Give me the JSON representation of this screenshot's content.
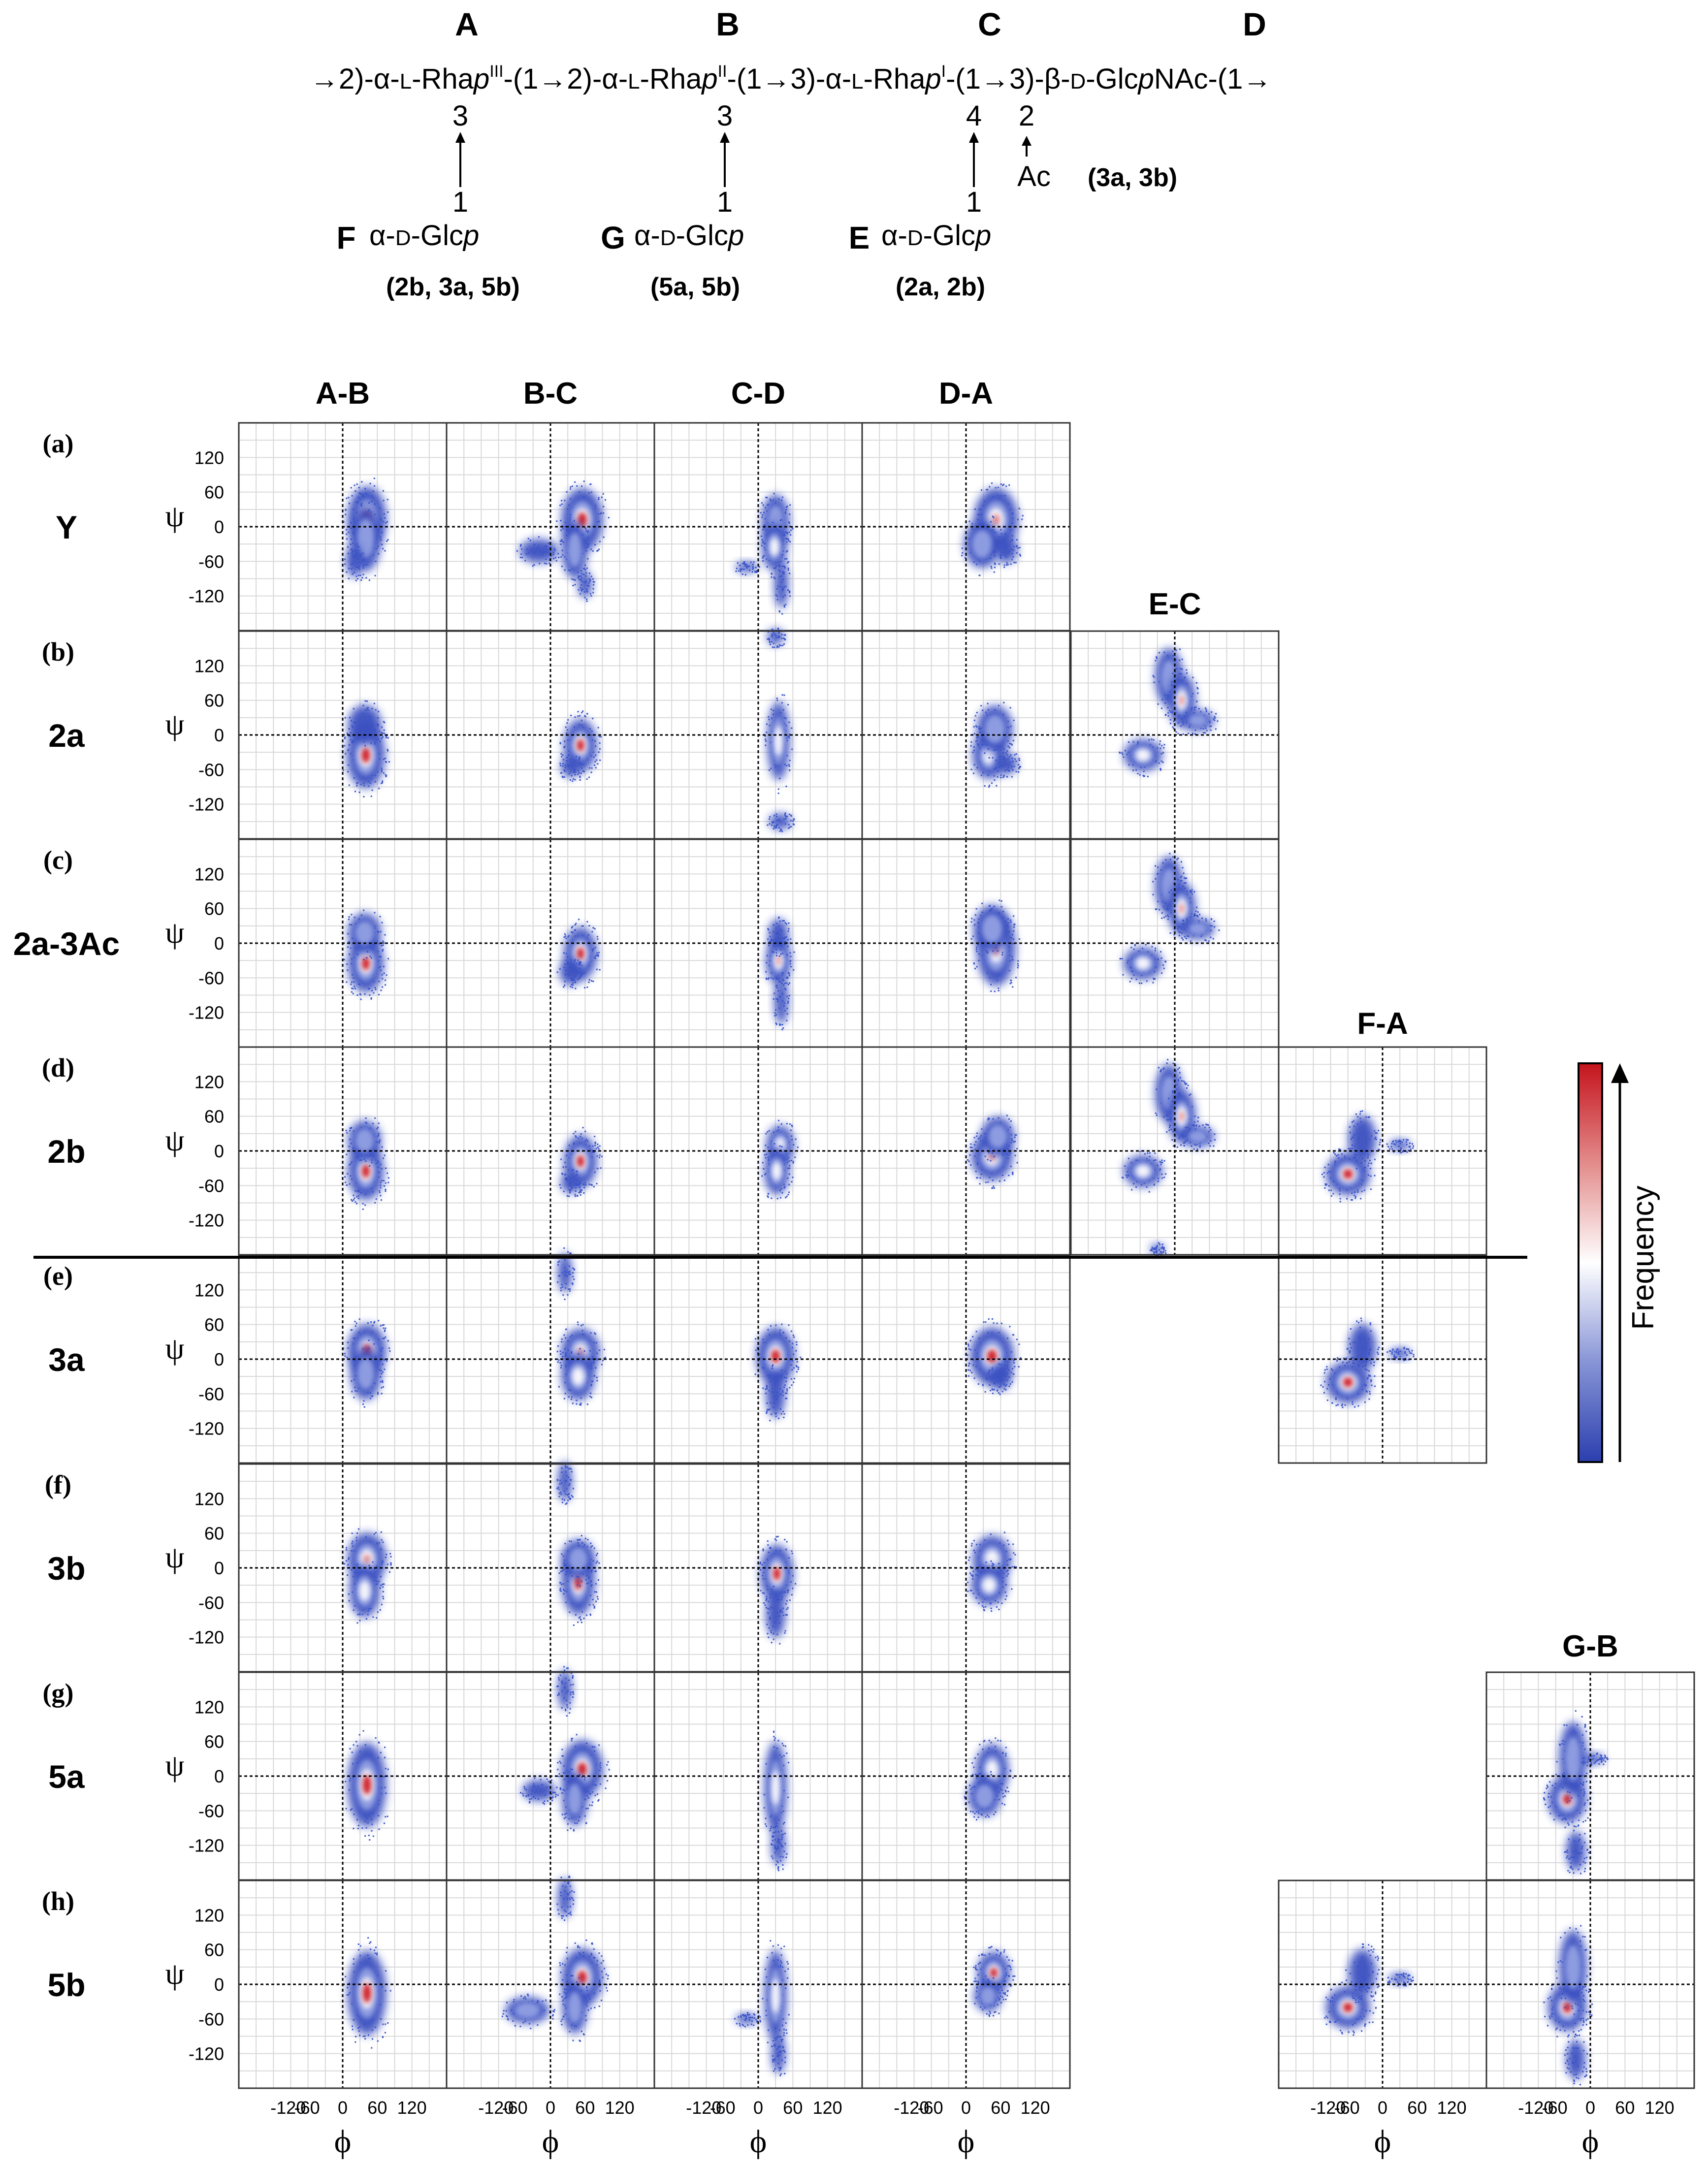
{
  "structure": {
    "residue_letters": [
      "A",
      "B",
      "C",
      "D"
    ],
    "chain": {
      "p1": "→2)-α-",
      "p2": "L",
      "p3": "-Rha",
      "p4": "p",
      "p5": "III",
      "p6": "-(1→2)-α-",
      "p7": "L",
      "p8": "-Rha",
      "p9": "p",
      "p10": "II",
      "p11": "-(1→3)-α-",
      "p12": "L",
      "p13": "-Rha",
      "p14": "p",
      "p15": "I",
      "p16": "-(1→3)-β-",
      "p17": "D",
      "p18": "-Glc",
      "p19": "p",
      "p20": "NAc-(1→"
    },
    "branches": [
      {
        "position": "3",
        "linkage": "1",
        "letter": "F",
        "sugar_a": "α-",
        "sugar_b": "D",
        "sugar_c": "-Glc",
        "sugar_d": "p",
        "note": "(2b, 3a, 5b)"
      },
      {
        "position": "3",
        "linkage": "1",
        "letter": "G",
        "sugar_a": "α-",
        "sugar_b": "D",
        "sugar_c": "-Glc",
        "sugar_d": "p",
        "note": "(5a, 5b)"
      },
      {
        "position": "4",
        "linkage": "1",
        "letter": "E",
        "sugar_a": "α-",
        "sugar_b": "D",
        "sugar_c": "-Glc",
        "sugar_d": "p",
        "note": "(2a, 2b)"
      }
    ],
    "acetyl": {
      "position": "2",
      "label": "Ac",
      "note": "(3a, 3b)"
    }
  },
  "chart_data": {
    "type": "heatmap",
    "description_of_marks": "Ramachandran-type phi/psi frequency density maps",
    "columns": [
      "A-B",
      "B-C",
      "C-D",
      "D-A",
      "E-C",
      "F-A",
      "G-B"
    ],
    "xlabel": "ϕ",
    "ylabel": "ψ",
    "xlim": [
      -180,
      180
    ],
    "ylim": [
      -180,
      180
    ],
    "x_ticks": [
      "-120",
      "-60",
      "0",
      "60",
      "120"
    ],
    "y_ticks": [
      "120",
      "60",
      "0",
      "-60",
      "-120"
    ],
    "grid": true,
    "colorbar": {
      "label": "Frequency",
      "low_color": "#2b3fae",
      "mid_color": "#ffffff",
      "high_color": "#c4141c"
    },
    "rows": [
      {
        "tag": "(a)",
        "name": "Y",
        "panels": {
          "A-B": [
            [
              42,
              15,
              14,
              24,
              0.9
            ],
            [
              40,
              -20,
              11,
              25,
              0.4
            ],
            [
              20,
              -60,
              6,
              12,
              0.1
            ]
          ],
          "B-C": [
            [
              55,
              12,
              15,
              24,
              1.0
            ],
            [
              42,
              -40,
              9,
              22,
              0.4
            ],
            [
              -20,
              -42,
              14,
              9,
              0.2
            ],
            [
              60,
              -100,
              5,
              10,
              0.1
            ]
          ],
          "C-D": [
            [
              30,
              10,
              10,
              20,
              0.45
            ],
            [
              28,
              -35,
              9,
              18,
              0.55
            ],
            [
              40,
              -100,
              5,
              18,
              0.1
            ],
            [
              -20,
              -70,
              8,
              4,
              0.05
            ]
          ],
          "D-A": [
            [
              52,
              12,
              16,
              24,
              0.6
            ],
            [
              28,
              -30,
              13,
              18,
              0.4
            ],
            [
              70,
              -40,
              8,
              10,
              0.15
            ]
          ]
        }
      },
      {
        "tag": "(b)",
        "name": "2a",
        "panels": {
          "A-B": [
            [
              40,
              -35,
              14,
              25,
              1.0
            ],
            [
              38,
              18,
              12,
              15,
              0.25
            ]
          ],
          "B-C": [
            [
              52,
              -18,
              12,
              20,
              1.0
            ],
            [
              35,
              -55,
              7,
              8,
              0.2
            ]
          ],
          "C-D": [
            [
              35,
              -10,
              8,
              30,
              0.5
            ],
            [
              38,
              -150,
              8,
              6,
              0.15
            ],
            [
              30,
              170,
              6,
              6,
              0.1
            ]
          ],
          "D-A": [
            [
              40,
              -35,
              12,
              18,
              0.5
            ],
            [
              50,
              10,
              13,
              18,
              0.4
            ],
            [
              70,
              -50,
              8,
              8,
              0.15
            ]
          ],
          "E-C": [
            [
              -10,
              100,
              10,
              22,
              0.35
            ],
            [
              12,
              60,
              10,
              20,
              0.6
            ],
            [
              40,
              25,
              12,
              8,
              0.3
            ],
            [
              -55,
              -35,
              14,
              12,
              0.5
            ]
          ]
        }
      },
      {
        "tag": "(c)",
        "name": "2a-3Ac",
        "panels": {
          "A-B": [
            [
              40,
              -35,
              13,
              22,
              1.0
            ],
            [
              38,
              18,
              12,
              15,
              0.3
            ]
          ],
          "B-C": [
            [
              52,
              -18,
              12,
              20,
              1.0
            ],
            [
              35,
              -50,
              8,
              10,
              0.25
            ]
          ],
          "C-D": [
            [
              35,
              -30,
              9,
              18,
              0.6
            ],
            [
              35,
              15,
              7,
              12,
              0.25
            ],
            [
              40,
              -100,
              5,
              18,
              0.1
            ]
          ],
          "D-A": [
            [
              52,
              -10,
              14,
              28,
              0.7
            ],
            [
              45,
              25,
              13,
              18,
              0.3
            ]
          ],
          "E-C": [
            [
              -10,
              100,
              10,
              22,
              0.35
            ],
            [
              12,
              60,
              10,
              20,
              0.6
            ],
            [
              40,
              25,
              12,
              8,
              0.3
            ],
            [
              -55,
              -35,
              14,
              12,
              0.5
            ]
          ]
        }
      },
      {
        "tag": "(d)",
        "name": "2b",
        "panels": {
          "A-B": [
            [
              40,
              -35,
              13,
              22,
              1.0
            ],
            [
              38,
              18,
              12,
              15,
              0.3
            ]
          ],
          "B-C": [
            [
              52,
              -18,
              12,
              20,
              1.0
            ],
            [
              35,
              -55,
              7,
              8,
              0.2
            ]
          ],
          "C-D": [
            [
              38,
              10,
              10,
              15,
              0.5
            ],
            [
              32,
              -35,
              9,
              18,
              0.5
            ]
          ],
          "D-A": [
            [
              45,
              -10,
              15,
              18,
              0.6
            ],
            [
              55,
              25,
              12,
              15,
              0.4
            ]
          ],
          "E-C": [
            [
              -10,
              100,
              10,
              22,
              0.35
            ],
            [
              12,
              60,
              10,
              20,
              0.6
            ],
            [
              40,
              25,
              12,
              8,
              0.3
            ],
            [
              -55,
              -35,
              14,
              12,
              0.5
            ],
            [
              -30,
              -170,
              5,
              4,
              0.1
            ]
          ],
          "F-A": [
            [
              -60,
              -40,
              16,
              16,
              1.0
            ],
            [
              -35,
              20,
              10,
              18,
              0.25
            ],
            [
              30,
              10,
              8,
              4,
              0.1
            ]
          ]
        }
      },
      {
        "tag": "(e)",
        "name": "3a",
        "panels": {
          "A-B": [
            [
              42,
              15,
              14,
              20,
              0.9
            ],
            [
              40,
              -25,
              11,
              20,
              0.4
            ]
          ],
          "B-C": [
            [
              52,
              12,
              14,
              18,
              0.6
            ],
            [
              48,
              -30,
              12,
              18,
              0.5
            ],
            [
              25,
              150,
              5,
              15,
              0.15
            ]
          ],
          "C-D": [
            [
              30,
              5,
              14,
              22,
              1.0
            ],
            [
              30,
              -60,
              7,
              18,
              0.2
            ]
          ],
          "D-A": [
            [
              45,
              5,
              16,
              22,
              1.0
            ],
            [
              60,
              -30,
              8,
              10,
              0.2
            ]
          ],
          "F-A": [
            [
              -60,
              -40,
              16,
              16,
              1.0
            ],
            [
              -35,
              20,
              10,
              18,
              0.25
            ],
            [
              30,
              10,
              8,
              4,
              0.1
            ]
          ]
        }
      },
      {
        "tag": "(f)",
        "name": "3b",
        "panels": {
          "A-B": [
            [
              42,
              15,
              14,
              20,
              0.6
            ],
            [
              38,
              -40,
              11,
              20,
              0.5
            ]
          ],
          "B-C": [
            [
              48,
              -25,
              12,
              25,
              0.8
            ],
            [
              48,
              15,
              12,
              15,
              0.4
            ],
            [
              25,
              150,
              5,
              15,
              0.15
            ]
          ],
          "C-D": [
            [
              32,
              -10,
              12,
              22,
              1.0
            ],
            [
              30,
              -80,
              7,
              18,
              0.15
            ]
          ],
          "D-A": [
            [
              45,
              15,
              14,
              18,
              0.5
            ],
            [
              40,
              -30,
              13,
              15,
              0.5
            ]
          ]
        }
      },
      {
        "tag": "(g)",
        "name": "5a",
        "panels": {
          "A-B": [
            [
              42,
              -15,
              14,
              32,
              0.8
            ]
          ],
          "B-C": [
            [
              55,
              12,
              15,
              22,
              1.0
            ],
            [
              42,
              -40,
              9,
              20,
              0.4
            ],
            [
              -20,
              -25,
              12,
              8,
              0.2
            ],
            [
              25,
              150,
              5,
              15,
              0.15
            ]
          ],
          "C-D": [
            [
              30,
              -20,
              8,
              35,
              0.5
            ],
            [
              35,
              -120,
              5,
              15,
              0.1
            ]
          ],
          "D-A": [
            [
              45,
              10,
              12,
              20,
              0.5
            ],
            [
              32,
              -35,
              12,
              15,
              0.45
            ]
          ],
          "G-B": [
            [
              -40,
              -40,
              14,
              18,
              1.0
            ],
            [
              -30,
              30,
              10,
              28,
              0.35
            ],
            [
              -25,
              -130,
              7,
              15,
              0.15
            ],
            [
              5,
              30,
              8,
              4,
              0.1
            ]
          ]
        }
      },
      {
        "tag": "(h)",
        "name": "5b",
        "panels": {
          "A-B": [
            [
              42,
              -15,
              14,
              32,
              0.8
            ]
          ],
          "B-C": [
            [
              55,
              12,
              15,
              22,
              1.0
            ],
            [
              42,
              -40,
              9,
              20,
              0.4
            ],
            [
              -40,
              -45,
              16,
              10,
              0.35
            ],
            [
              25,
              150,
              5,
              15,
              0.15
            ]
          ],
          "C-D": [
            [
              30,
              -20,
              8,
              35,
              0.5
            ],
            [
              35,
              -120,
              5,
              15,
              0.1
            ],
            [
              -20,
              -60,
              8,
              4,
              0.05
            ]
          ],
          "D-A": [
            [
              48,
              20,
              12,
              16,
              1.0
            ],
            [
              38,
              -20,
              10,
              12,
              0.35
            ]
          ],
          "F-A": [
            [
              -60,
              -40,
              16,
              16,
              1.0
            ],
            [
              -35,
              20,
              10,
              18,
              0.25
            ],
            [
              30,
              10,
              8,
              4,
              0.1
            ]
          ],
          "G-B": [
            [
              -40,
              -40,
              14,
              18,
              1.0
            ],
            [
              -30,
              30,
              10,
              28,
              0.35
            ],
            [
              -25,
              -130,
              7,
              15,
              0.15
            ]
          ]
        }
      }
    ]
  }
}
